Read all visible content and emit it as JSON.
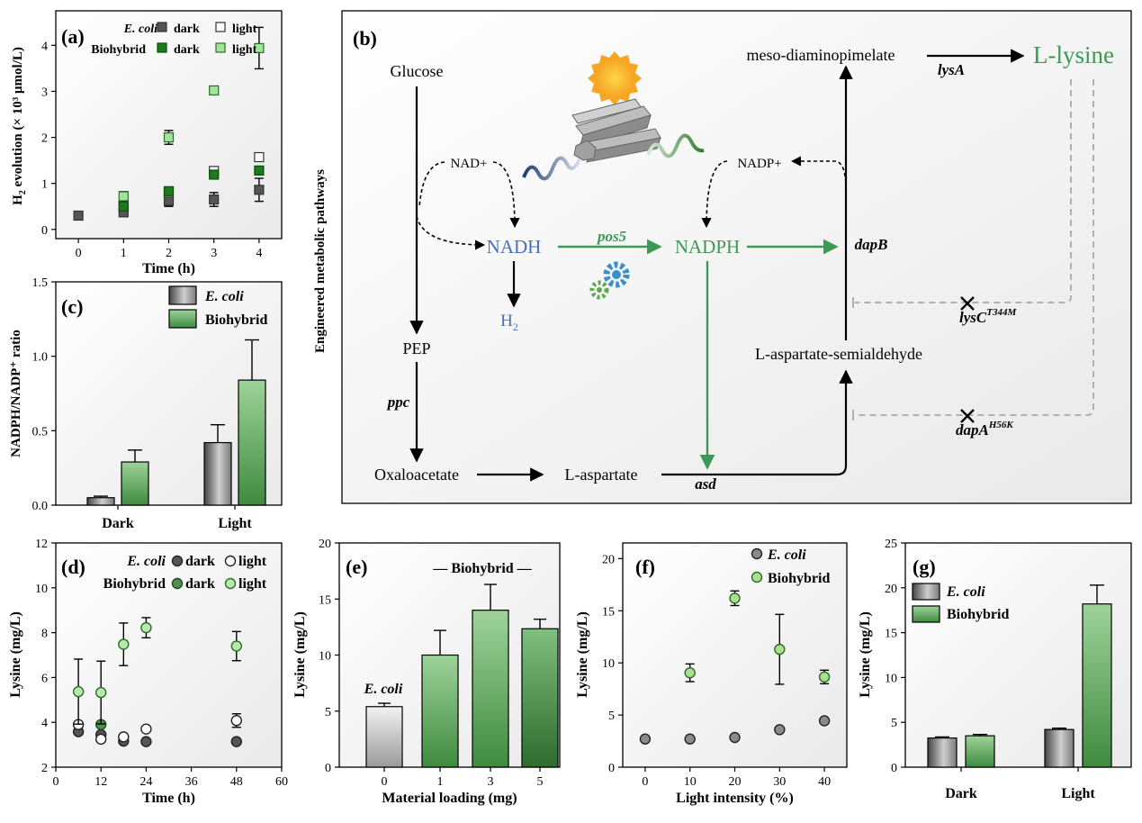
{
  "colors": {
    "ecoli_dark": "#555555",
    "ecoli_light": "#ffffff",
    "bio_dark": "#1e7a1e",
    "bio_light": "#a3e39b",
    "green_text": "#3a9a55",
    "blue_text": "#4a6fc0",
    "bar_green": "#6fb46a",
    "bar_gray": "#a8a8a8"
  },
  "chart_data": [
    {
      "panel": "(a)",
      "type": "scatter",
      "xlabel": "Time (h)",
      "ylabel": "H2 evolution (× 10³ μmol/L)",
      "xlim": [
        -0.5,
        4.5
      ],
      "ylim": [
        -0.2,
        4.75
      ],
      "xticks": [
        0,
        1,
        2,
        3,
        4
      ],
      "yticks": [
        0,
        1,
        2,
        3,
        4
      ],
      "legend": {
        "row1": "E. coli",
        "row2": "Biohybrid",
        "dark": "dark",
        "light": "light"
      },
      "series": [
        {
          "key": "ecoli_dark",
          "x": [
            0,
            1,
            2,
            3,
            4
          ],
          "y": [
            0.3,
            0.37,
            0.62,
            0.65,
            0.86
          ],
          "err": [
            0,
            0.05,
            0.12,
            0.15,
            0.25
          ]
        },
        {
          "key": "ecoli_light",
          "x": [
            1,
            2,
            3,
            4
          ],
          "y": [
            0.52,
            0.8,
            1.27,
            1.57
          ],
          "err": [
            0,
            0,
            0,
            0
          ]
        },
        {
          "key": "bio_dark",
          "x": [
            1,
            2,
            3,
            4
          ],
          "y": [
            0.5,
            0.83,
            1.19,
            1.28
          ],
          "err": [
            0.05,
            0,
            0,
            0
          ]
        },
        {
          "key": "bio_light",
          "x": [
            1,
            2,
            3,
            4
          ],
          "y": [
            0.72,
            2.0,
            3.02,
            3.94
          ],
          "err": [
            0.1,
            0.15,
            0,
            0.45
          ]
        }
      ]
    },
    {
      "panel": "(c)",
      "type": "bar",
      "ylabel": "NADPH/NADP⁺ ratio",
      "categories": [
        "Dark",
        "Light"
      ],
      "ylim": [
        0,
        1.5
      ],
      "yticks": [
        "0.0",
        "0.5",
        "1.0",
        "1.5"
      ],
      "legend": [
        "E. coli",
        "Biohybrid"
      ],
      "series": [
        {
          "key": "gray",
          "values": [
            0.05,
            0.42
          ],
          "err": [
            0.01,
            0.12
          ]
        },
        {
          "key": "green",
          "values": [
            0.29,
            0.84
          ],
          "err": [
            0.08,
            0.27
          ]
        }
      ]
    },
    {
      "panel": "(d)",
      "type": "scatter",
      "xlabel": "Time (h)",
      "ylabel": "Lysine (mg/L)",
      "xlim": [
        0,
        60
      ],
      "ylim": [
        2,
        12
      ],
      "xticks": [
        0,
        12,
        24,
        36,
        48,
        60
      ],
      "yticks": [
        2,
        4,
        6,
        8,
        10,
        12
      ],
      "legend": {
        "row1": "E. coli",
        "row2": "Biohybrid",
        "dark": "dark",
        "light": "light"
      },
      "series": [
        {
          "key": "ecoli_dark",
          "x": [
            6,
            12,
            18,
            24,
            48
          ],
          "y": [
            3.58,
            3.45,
            3.16,
            3.14,
            3.14
          ],
          "err": [
            0,
            0,
            0,
            0,
            0
          ]
        },
        {
          "key": "ecoli_light",
          "x": [
            6,
            12,
            18,
            24,
            48
          ],
          "y": [
            3.9,
            3.25,
            3.35,
            3.7,
            4.08
          ],
          "err": [
            0,
            0,
            0,
            0,
            0.3
          ]
        },
        {
          "key": "bio_dark",
          "x": [
            12
          ],
          "y": [
            3.9
          ],
          "err": [
            0
          ]
        },
        {
          "key": "bio_light",
          "x": [
            6,
            12,
            18,
            24,
            48
          ],
          "y": [
            5.37,
            5.33,
            7.48,
            8.22,
            7.4
          ],
          "err": [
            1.45,
            1.4,
            0.95,
            0.45,
            0.65
          ]
        }
      ]
    },
    {
      "panel": "(e)",
      "type": "bar",
      "xlabel": "Material loading (mg)",
      "ylabel": "Lysine (mg/L)",
      "categories": [
        "0",
        "1",
        "3",
        "5"
      ],
      "values": [
        5.4,
        10.0,
        14.0,
        12.35
      ],
      "err": [
        0.3,
        2.2,
        2.3,
        0.85
      ],
      "ylim": [
        0,
        20
      ],
      "yticks": [
        0,
        5,
        10,
        15,
        20
      ],
      "labels": {
        "ecoli": "E. coli",
        "biohybrid": "— Biohybrid —"
      }
    },
    {
      "panel": "(f)",
      "type": "scatter",
      "xlabel": "Light intensity (%)",
      "ylabel": "Lysine (mg/L)",
      "xlim": [
        -5,
        45
      ],
      "ylim": [
        0,
        21.5
      ],
      "xticks": [
        0,
        10,
        20,
        30,
        40
      ],
      "yticks": [
        0,
        5,
        10,
        15,
        20
      ],
      "legend": [
        "E. coli",
        "Biohybrid"
      ],
      "series": [
        {
          "key": "gray",
          "x": [
            0,
            10,
            20,
            30,
            40
          ],
          "y": [
            2.7,
            2.7,
            2.85,
            3.6,
            4.45
          ],
          "err": [
            0,
            0,
            0,
            0,
            0
          ]
        },
        {
          "key": "bio_light",
          "x": [
            10,
            20,
            30,
            40
          ],
          "y": [
            9.05,
            16.2,
            11.3,
            8.65
          ],
          "err": [
            0.85,
            0.7,
            3.35,
            0.65
          ]
        }
      ]
    },
    {
      "panel": "(g)",
      "type": "bar",
      "ylabel": "Lysine (mg/L)",
      "categories": [
        "Dark",
        "Light"
      ],
      "ylim": [
        0,
        25
      ],
      "yticks": [
        0,
        5,
        10,
        15,
        20,
        25
      ],
      "legend": [
        "E. coli",
        "Biohybrid"
      ],
      "series": [
        {
          "key": "gray",
          "values": [
            3.25,
            4.2
          ],
          "err": [
            0.12,
            0.15
          ]
        },
        {
          "key": "green",
          "values": [
            3.5,
            18.2
          ],
          "err": [
            0.15,
            2.1
          ]
        }
      ]
    }
  ],
  "diagram": {
    "panel": "(b)",
    "side_label": "Engineered metabolic pathways",
    "nodes": {
      "glucose": "Glucose",
      "pep": "PEP",
      "oxaloacetate": "Oxaloacetate",
      "laspartate": "L-aspartate",
      "semialdehyde": "L-aspartate-semialdehyde",
      "meso": "meso-diaminopimelate",
      "lysine": "L-lysine",
      "nadh": "NADH",
      "nadph": "NADPH",
      "h2": "H",
      "h2_sub": "2",
      "nadplus": "NAD+",
      "nadpplus": "NADP+"
    },
    "enzymes": {
      "ppc": "ppc",
      "asd": "asd",
      "dapB": "dapB",
      "lysA": "lysA",
      "pos5": "pos5",
      "lysC": "lysC",
      "lysC_sup": "T344M",
      "dapA": "dapA",
      "dapA_sup": "H56K"
    }
  }
}
